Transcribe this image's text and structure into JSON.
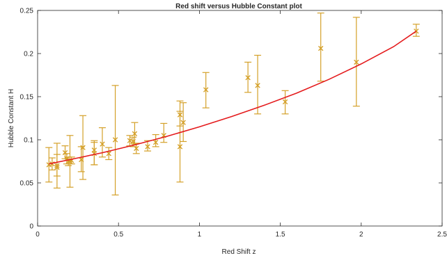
{
  "chart_data": {
    "type": "scatter",
    "title": "Red shift versus Hubble Constant plot",
    "xlabel": "Red Shift z",
    "ylabel": "Hubble Constant H",
    "xlim": [
      0,
      2.5
    ],
    "ylim": [
      0,
      0.25
    ],
    "xticks": [
      "0",
      "0.5",
      "1",
      "1.5",
      "2",
      "2.5"
    ],
    "yticks": [
      "0",
      "0.05",
      "0.1",
      "0.15",
      "0.2",
      "0.25"
    ],
    "grid": false,
    "colors": {
      "points": "#d4a028",
      "fit": "#e41a1c",
      "axes": "#262626"
    },
    "series": [
      {
        "kind": "errorbar",
        "points": [
          {
            "x": 0.07,
            "y": 0.071,
            "lo": 0.051,
            "hi": 0.091
          },
          {
            "x": 0.09,
            "y": 0.072,
            "lo": 0.065,
            "hi": 0.079
          },
          {
            "x": 0.12,
            "y": 0.068,
            "lo": 0.058,
            "hi": 0.083
          },
          {
            "x": 0.12,
            "y": 0.07,
            "lo": 0.044,
            "hi": 0.096
          },
          {
            "x": 0.17,
            "y": 0.085,
            "lo": 0.078,
            "hi": 0.093
          },
          {
            "x": 0.18,
            "y": 0.078,
            "lo": 0.072,
            "hi": 0.084
          },
          {
            "x": 0.19,
            "y": 0.075,
            "lo": 0.07,
            "hi": 0.08
          },
          {
            "x": 0.2,
            "y": 0.075,
            "lo": 0.045,
            "hi": 0.105
          },
          {
            "x": 0.21,
            "y": 0.076,
            "lo": 0.072,
            "hi": 0.08
          },
          {
            "x": 0.27,
            "y": 0.077,
            "lo": 0.063,
            "hi": 0.092
          },
          {
            "x": 0.28,
            "y": 0.091,
            "lo": 0.054,
            "hi": 0.128
          },
          {
            "x": 0.35,
            "y": 0.084,
            "lo": 0.071,
            "hi": 0.097
          },
          {
            "x": 0.35,
            "y": 0.088,
            "lo": 0.071,
            "hi": 0.099
          },
          {
            "x": 0.4,
            "y": 0.095,
            "lo": 0.08,
            "hi": 0.114
          },
          {
            "x": 0.44,
            "y": 0.084,
            "lo": 0.077,
            "hi": 0.091
          },
          {
            "x": 0.48,
            "y": 0.1,
            "lo": 0.036,
            "hi": 0.163
          },
          {
            "x": 0.57,
            "y": 0.099,
            "lo": 0.093,
            "hi": 0.105
          },
          {
            "x": 0.59,
            "y": 0.098,
            "lo": 0.092,
            "hi": 0.103
          },
          {
            "x": 0.6,
            "y": 0.107,
            "lo": 0.095,
            "hi": 0.12
          },
          {
            "x": 0.61,
            "y": 0.09,
            "lo": 0.084,
            "hi": 0.096
          },
          {
            "x": 0.68,
            "y": 0.092,
            "lo": 0.087,
            "hi": 0.099
          },
          {
            "x": 0.73,
            "y": 0.097,
            "lo": 0.092,
            "hi": 0.106
          },
          {
            "x": 0.78,
            "y": 0.105,
            "lo": 0.097,
            "hi": 0.119
          },
          {
            "x": 0.88,
            "y": 0.129,
            "lo": 0.116,
            "hi": 0.145
          },
          {
            "x": 0.88,
            "y": 0.092,
            "lo": 0.051,
            "hi": 0.133
          },
          {
            "x": 0.9,
            "y": 0.12,
            "lo": 0.098,
            "hi": 0.143
          },
          {
            "x": 1.04,
            "y": 0.158,
            "lo": 0.137,
            "hi": 0.178
          },
          {
            "x": 1.3,
            "y": 0.172,
            "lo": 0.155,
            "hi": 0.19
          },
          {
            "x": 1.36,
            "y": 0.163,
            "lo": 0.13,
            "hi": 0.198
          },
          {
            "x": 1.53,
            "y": 0.144,
            "lo": 0.13,
            "hi": 0.157
          },
          {
            "x": 1.75,
            "y": 0.206,
            "lo": 0.168,
            "hi": 0.247
          },
          {
            "x": 1.97,
            "y": 0.19,
            "lo": 0.139,
            "hi": 0.242
          },
          {
            "x": 2.34,
            "y": 0.226,
            "lo": 0.22,
            "hi": 0.234
          }
        ]
      },
      {
        "kind": "fit",
        "x": [
          0.07,
          0.2,
          0.4,
          0.6,
          0.8,
          1.0,
          1.2,
          1.4,
          1.6,
          1.8,
          2.0,
          2.2,
          2.34
        ],
        "y": [
          0.072,
          0.077,
          0.085,
          0.094,
          0.104,
          0.115,
          0.127,
          0.14,
          0.154,
          0.17,
          0.188,
          0.208,
          0.226
        ]
      }
    ]
  }
}
